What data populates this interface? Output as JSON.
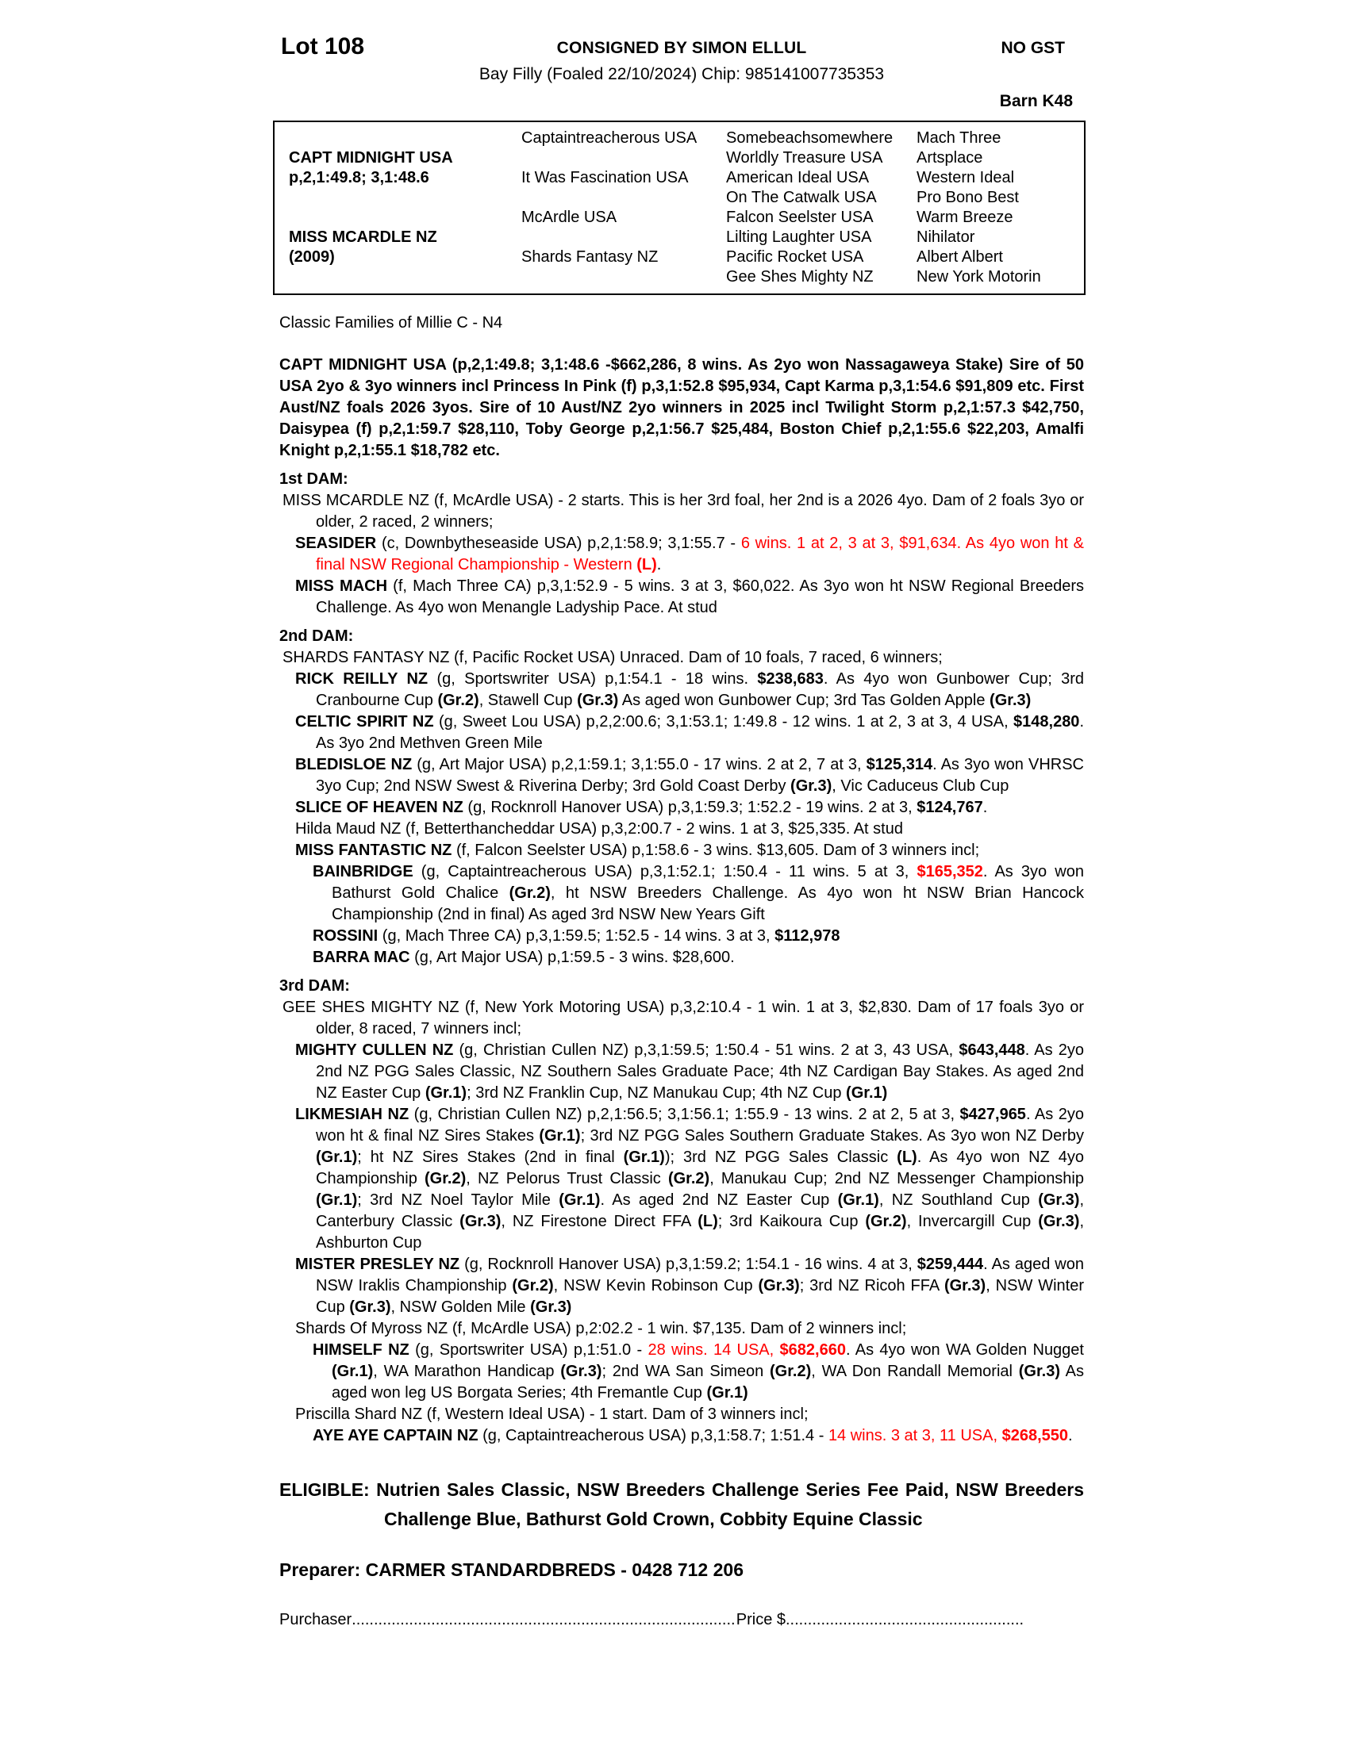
{
  "colors": {
    "red": "#FF0000",
    "black": "#000000"
  },
  "header": {
    "lot": "Lot 108",
    "consigned": "CONSIGNED BY SIMON ELLUL",
    "no_gst": "NO GST",
    "description": "Bay Filly (Foaled 22/10/2024) Chip: 985141007735353",
    "barn": "Barn K48"
  },
  "pedigree_table": {
    "col1": [
      {
        "name": "CAPT MIDNIGHT USA",
        "detail": "p,2,1:49.8; 3,1:48.6",
        "row": 2
      },
      {
        "name": "MISS MCARDLE NZ",
        "detail": "(2009)",
        "row": 6
      }
    ],
    "col2": [
      "Captaintreacherous USA",
      "It Was Fascination USA",
      "McArdle USA",
      "Shards Fantasy NZ"
    ],
    "col3": [
      "Somebeachsomewhere",
      "Worldly Treasure USA",
      "American Ideal USA",
      "On The Catwalk USA",
      "Falcon Seelster USA",
      "Lilting Laughter USA",
      "Pacific Rocket USA",
      "Gee Shes Mighty NZ"
    ],
    "col4": [
      "Mach Three",
      "Artsplace",
      "Western Ideal",
      "Pro Bono Best",
      "Warm Breeze",
      "Nihilator",
      "Albert Albert",
      "New York Motorin"
    ]
  },
  "classic_families": "Classic Families of Millie C - N4",
  "sire_paragraph": "CAPT MIDNIGHT USA (p,2,1:49.8; 3,1:48.6 -$662,286, 8 wins. As 2yo won Nassagaweya Stake) Sire of 50 USA 2yo & 3yo winners incl Princess In Pink (f) p,3,1:52.8 $95,934, Capt Karma p,3,1:54.6 $91,809 etc. First Aust/NZ foals 2026 3yos. Sire of 10 Aust/NZ 2yo winners in 2025 incl Twilight Storm p,2,1:57.3 $42,750, Daisypea (f) p,2,1:59.7 $28,110, Toby George p,2,1:56.7 $25,484, Boston Chief p,2,1:55.6 $22,203, Amalfi Knight p,2,1:55.1 $18,782 etc.",
  "sections": [
    {
      "label": "1st DAM:",
      "entries": [
        {
          "level": "dam",
          "segs": [
            {
              "t": "MISS MCARDLE NZ (f, McArdle USA) - 2 starts. This is her 3rd foal, her 2nd is a 2026 4yo. Dam of 2 foals 3yo or older, 2 raced, 2 winners;"
            }
          ]
        },
        {
          "level": "1",
          "segs": [
            {
              "t": "SEASIDER",
              "b": true
            },
            {
              "t": " (c, Downbytheseaside USA) p,2,1:58.9; 3,1:55.7 - "
            },
            {
              "t": "6 wins. 1 at 2, 3 at 3, $91,634. As 4yo won ht & final NSW Regional Championship - Western ",
              "r": true
            },
            {
              "t": "(L)",
              "r": true,
              "b": true
            },
            {
              "t": "."
            }
          ]
        },
        {
          "level": "1",
          "segs": [
            {
              "t": "MISS MACH",
              "b": true
            },
            {
              "t": " (f, Mach Three CA) p,3,1:52.9 - 5 wins. 3 at 3, $60,022. As 3yo won ht NSW Regional Breeders Challenge. As 4yo won Menangle Ladyship Pace. At stud"
            }
          ]
        }
      ]
    },
    {
      "label": "2nd DAM:",
      "entries": [
        {
          "level": "dam",
          "segs": [
            {
              "t": "SHARDS FANTASY NZ (f, Pacific Rocket USA) Unraced. Dam of 10 foals, 7 raced, 6 winners;"
            }
          ]
        },
        {
          "level": "1",
          "segs": [
            {
              "t": "RICK REILLY NZ",
              "b": true
            },
            {
              "t": " (g, Sportswriter USA) p,1:54.1 - 18 wins. "
            },
            {
              "t": "$238,683",
              "b": true
            },
            {
              "t": ". As 4yo won Gunbower Cup; 3rd Cranbourne Cup "
            },
            {
              "t": "(Gr.2)",
              "b": true
            },
            {
              "t": ", Stawell Cup "
            },
            {
              "t": "(Gr.3)",
              "b": true
            },
            {
              "t": " As aged won Gunbower Cup; 3rd Tas Golden Apple "
            },
            {
              "t": "(Gr.3)",
              "b": true
            }
          ]
        },
        {
          "level": "1",
          "segs": [
            {
              "t": "CELTIC SPIRIT NZ",
              "b": true
            },
            {
              "t": " (g, Sweet Lou USA) p,2,2:00.6; 3,1:53.1; 1:49.8 - 12 wins. 1 at 2, 3 at 3, 4 USA, "
            },
            {
              "t": "$148,280",
              "b": true
            },
            {
              "t": ". As 3yo 2nd Methven Green Mile"
            }
          ]
        },
        {
          "level": "1",
          "segs": [
            {
              "t": "BLEDISLOE NZ",
              "b": true
            },
            {
              "t": " (g, Art Major USA) p,2,1:59.1; 3,1:55.0 - 17 wins. 2 at 2, 7 at 3, "
            },
            {
              "t": "$125,314",
              "b": true
            },
            {
              "t": ". As 3yo won VHRSC 3yo Cup; 2nd NSW Swest & Riverina Derby; 3rd Gold Coast Derby "
            },
            {
              "t": "(Gr.3)",
              "b": true
            },
            {
              "t": ", Vic Caduceus Club Cup"
            }
          ]
        },
        {
          "level": "1",
          "segs": [
            {
              "t": "SLICE OF HEAVEN NZ",
              "b": true
            },
            {
              "t": " (g, Rocknroll Hanover USA) p,3,1:59.3; 1:52.2 - 19 wins. 2 at 3, "
            },
            {
              "t": "$124,767",
              "b": true
            },
            {
              "t": "."
            }
          ]
        },
        {
          "level": "1",
          "segs": [
            {
              "t": "Hilda Maud NZ (f, Betterthancheddar USA) p,3,2:00.7 - 2 wins. 1 at 3, $25,335. At stud"
            }
          ]
        },
        {
          "level": "1",
          "segs": [
            {
              "t": "MISS FANTASTIC NZ",
              "b": true
            },
            {
              "t": " (f, Falcon Seelster USA) p,1:58.6 - 3 wins. $13,605. Dam of 3 winners incl;"
            }
          ]
        },
        {
          "level": "2",
          "segs": [
            {
              "t": "BAINBRIDGE",
              "b": true
            },
            {
              "t": " (g, Captaintreacherous USA) p,3,1:52.1; 1:50.4 - 11 wins. 5 at 3, "
            },
            {
              "t": "$165,352",
              "r": true,
              "b": true
            },
            {
              "t": ". As 3yo won Bathurst Gold Chalice "
            },
            {
              "t": "(Gr.2)",
              "b": true
            },
            {
              "t": ", ht NSW Breeders Challenge. As 4yo won ht NSW Brian Hancock Championship (2nd in final) As aged 3rd NSW New Years Gift"
            }
          ]
        },
        {
          "level": "2",
          "segs": [
            {
              "t": "ROSSINI",
              "b": true
            },
            {
              "t": " (g, Mach Three CA) p,3,1:59.5; 1:52.5 - 14 wins. 3 at 3, "
            },
            {
              "t": "$112,978",
              "b": true
            }
          ]
        },
        {
          "level": "2",
          "segs": [
            {
              "t": "BARRA MAC",
              "b": true
            },
            {
              "t": " (g, Art Major USA) p,1:59.5 - 3 wins. $28,600."
            }
          ]
        }
      ]
    },
    {
      "label": "3rd DAM:",
      "entries": [
        {
          "level": "dam",
          "segs": [
            {
              "t": "GEE SHES MIGHTY NZ (f, New York Motoring USA) p,3,2:10.4 - 1 win. 1 at 3, $2,830. Dam of 17 foals 3yo or older, 8 raced, 7 winners incl;"
            }
          ]
        },
        {
          "level": "1",
          "segs": [
            {
              "t": "MIGHTY CULLEN NZ",
              "b": true
            },
            {
              "t": " (g, Christian Cullen NZ) p,3,1:59.5; 1:50.4 - 51 wins. 2 at 3, 43 USA, "
            },
            {
              "t": "$643,448",
              "b": true
            },
            {
              "t": ". As 2yo 2nd NZ PGG Sales Classic, NZ Southern Sales Graduate Pace; 4th NZ Cardigan Bay Stakes. As aged 2nd NZ Easter Cup "
            },
            {
              "t": "(Gr.1)",
              "b": true
            },
            {
              "t": "; 3rd NZ Franklin Cup, NZ Manukau Cup; 4th NZ Cup "
            },
            {
              "t": "(Gr.1)",
              "b": true
            }
          ]
        },
        {
          "level": "1",
          "segs": [
            {
              "t": "LIKMESIAH NZ",
              "b": true
            },
            {
              "t": " (g, Christian Cullen NZ) p,2,1:56.5; 3,1:56.1; 1:55.9 - 13 wins. 2 at 2, 5 at 3, "
            },
            {
              "t": "$427,965",
              "b": true
            },
            {
              "t": ". As 2yo won ht & final NZ Sires Stakes "
            },
            {
              "t": "(Gr.1)",
              "b": true
            },
            {
              "t": "; 3rd NZ PGG Sales Southern Graduate Stakes. As 3yo won NZ Derby "
            },
            {
              "t": "(Gr.1)",
              "b": true
            },
            {
              "t": "; ht NZ Sires Stakes (2nd in final "
            },
            {
              "t": "(Gr.1)",
              "b": true
            },
            {
              "t": "); 3rd NZ PGG Sales Classic "
            },
            {
              "t": "(L)",
              "b": true
            },
            {
              "t": ". As 4yo won NZ 4yo Championship "
            },
            {
              "t": "(Gr.2)",
              "b": true
            },
            {
              "t": ", NZ Pelorus Trust Classic "
            },
            {
              "t": "(Gr.2)",
              "b": true
            },
            {
              "t": ", Manukau Cup; 2nd NZ Messenger Championship "
            },
            {
              "t": "(Gr.1)",
              "b": true
            },
            {
              "t": "; 3rd NZ Noel Taylor Mile "
            },
            {
              "t": "(Gr.1)",
              "b": true
            },
            {
              "t": ". As aged 2nd NZ Easter Cup "
            },
            {
              "t": "(Gr.1)",
              "b": true
            },
            {
              "t": ", NZ Southland Cup "
            },
            {
              "t": "(Gr.3)",
              "b": true
            },
            {
              "t": ", Canterbury Classic "
            },
            {
              "t": "(Gr.3)",
              "b": true
            },
            {
              "t": ", NZ Firestone Direct FFA "
            },
            {
              "t": "(L)",
              "b": true
            },
            {
              "t": "; 3rd Kaikoura Cup "
            },
            {
              "t": "(Gr.2)",
              "b": true
            },
            {
              "t": ", Invercargill Cup "
            },
            {
              "t": "(Gr.3)",
              "b": true
            },
            {
              "t": ", Ashburton Cup"
            }
          ]
        },
        {
          "level": "1",
          "segs": [
            {
              "t": "MISTER PRESLEY NZ",
              "b": true
            },
            {
              "t": " (g, Rocknroll Hanover USA) p,3,1:59.2; 1:54.1 - 16 wins. 4 at 3, "
            },
            {
              "t": "$259,444",
              "b": true
            },
            {
              "t": ". As aged won NSW Iraklis Championship "
            },
            {
              "t": "(Gr.2)",
              "b": true
            },
            {
              "t": ", NSW Kevin Robinson Cup "
            },
            {
              "t": "(Gr.3)",
              "b": true
            },
            {
              "t": "; 3rd NZ Ricoh FFA "
            },
            {
              "t": "(Gr.3)",
              "b": true
            },
            {
              "t": ", NSW Winter Cup "
            },
            {
              "t": "(Gr.3)",
              "b": true
            },
            {
              "t": ", NSW Golden Mile "
            },
            {
              "t": "(Gr.3)",
              "b": true
            }
          ]
        },
        {
          "level": "1",
          "segs": [
            {
              "t": "Shards Of Myross NZ (f, McArdle USA) p,2:02.2 - 1 win. $7,135. Dam of 2 winners incl;"
            }
          ]
        },
        {
          "level": "2",
          "segs": [
            {
              "t": "HIMSELF NZ",
              "b": true
            },
            {
              "t": " (g, Sportswriter USA) p,1:51.0 - "
            },
            {
              "t": "28 wins. 14 USA, ",
              "r": true
            },
            {
              "t": "$682,660",
              "r": true,
              "b": true
            },
            {
              "t": ". As 4yo won WA Golden Nugget "
            },
            {
              "t": "(Gr.1)",
              "b": true
            },
            {
              "t": ", WA Marathon Handicap "
            },
            {
              "t": "(Gr.3)",
              "b": true
            },
            {
              "t": "; 2nd WA San Simeon "
            },
            {
              "t": "(Gr.2)",
              "b": true
            },
            {
              "t": ", WA Don Randall Memorial "
            },
            {
              "t": "(Gr.3)",
              "b": true
            },
            {
              "t": " As aged won leg US Borgata Series; 4th Fremantle Cup "
            },
            {
              "t": "(Gr.1)",
              "b": true
            }
          ]
        },
        {
          "level": "1",
          "segs": [
            {
              "t": "Priscilla Shard NZ (f, Western Ideal USA) - 1 start. Dam of 3 winners incl;"
            }
          ]
        },
        {
          "level": "2",
          "segs": [
            {
              "t": "AYE AYE CAPTAIN NZ",
              "b": true
            },
            {
              "t": " (g, Captaintreacherous USA) p,3,1:58.7; 1:51.4 - "
            },
            {
              "t": "14 wins. 3 at 3, 11 USA, ",
              "r": true
            },
            {
              "t": "$268,550",
              "r": true,
              "b": true
            },
            {
              "t": "."
            }
          ]
        }
      ]
    }
  ],
  "eligible": "ELIGIBLE: Nutrien Sales Classic, NSW Breeders Challenge Series Fee Paid, NSW Breeders Challenge Blue, Bathurst Gold Crown, Cobbity Equine Classic",
  "preparer": "Preparer: CARMER STANDARDBREDS - 0428 712 206",
  "purchaser_line": {
    "purchaser_label": "Purchaser",
    "price_label": "Price $",
    "dots": "........................................................................................................................................................................"
  }
}
